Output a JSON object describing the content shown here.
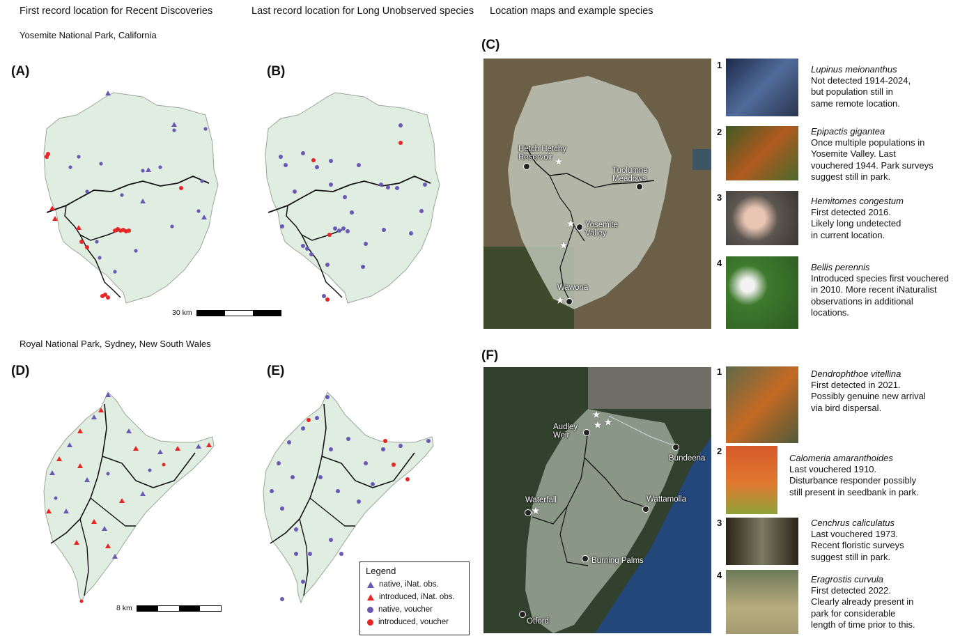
{
  "headers": {
    "col1": "First record location for Recent Discoveries",
    "col2": "Last record location for Long Unobserved species",
    "col3": "Location maps and example species"
  },
  "parks": {
    "yosemite": "Yosemite National Park, California",
    "royal": "Royal National Park, Sydney, New South Wales"
  },
  "panel_labels": {
    "A": "(A)",
    "B": "(B)",
    "C": "(C)",
    "D": "(D)",
    "E": "(E)",
    "F": "(F)"
  },
  "scales": {
    "yosemite": "30 km",
    "royal": "8 km"
  },
  "legend": {
    "title": "Legend",
    "items": [
      {
        "label": "native, iNat. obs.",
        "shape": "triangle",
        "color": "#6a58b5"
      },
      {
        "label": "introduced, iNat. obs.",
        "shape": "triangle",
        "color": "#e82424"
      },
      {
        "label": "native, voucher",
        "shape": "circle",
        "color": "#6a58b5"
      },
      {
        "label": "introduced, voucher",
        "shape": "circle",
        "color": "#e82424"
      }
    ]
  },
  "yosemite_places": {
    "hetch": "Hetch Hetchy\nReservoir",
    "tuolumne": "Tuolumne\nMeadows",
    "valley": "Yosemite\nValley",
    "wawona": "Wawona"
  },
  "royal_places": {
    "audley": "Audley\nWeir",
    "bundeena": "Bundeena",
    "waterfall": "Waterfall",
    "wattamolla": "Wattamolla",
    "burning": "Burning Palms",
    "otford": "Otford"
  },
  "yosemite_species": [
    {
      "num": "1",
      "name": "Lupinus meionanthus",
      "text": "Not detected 1914-2024,\nbut population still in\nsame remote location."
    },
    {
      "num": "2",
      "name": "Epipactis gigantea",
      "text": "Once multiple populations in\nYosemite Valley. Last\nvouchered 1944. Park surveys\nsuggest still in park."
    },
    {
      "num": "3",
      "name": "Hemitomes congestum",
      "text": "First detected 2016.\nLikely long undetected\nin current location."
    },
    {
      "num": "4",
      "name": "Bellis perennis",
      "text": "Introduced species first vouchered\nin 2010. More recent iNaturalist\nobservations in additional\nlocations."
    }
  ],
  "royal_species": [
    {
      "num": "1",
      "name": "Dendrophthoe vitellina",
      "text": "First detected in 2021.\nPossibly genuine new arrival\nvia bird dispersal."
    },
    {
      "num": "2",
      "name": "Calomeria amaranthoides",
      "text": "Last vouchered 1910.\nDisturbance responder possibly\nstill present in seedbank in park."
    },
    {
      "num": "3",
      "name": "Cenchrus caliculatus",
      "text": "Last vouchered 1973.\nRecent floristic surveys\nsuggest still in park."
    },
    {
      "num": "4",
      "name": "Eragrostis curvula",
      "text": "First detected 2022.\nClearly already present in\npark for considerable\nlength of time prior to this."
    }
  ],
  "colors": {
    "park_fill": "#dfeee0",
    "native": "#6a58b5",
    "introduced": "#e82424"
  }
}
